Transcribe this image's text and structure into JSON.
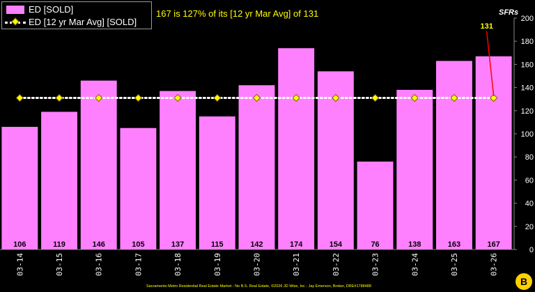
{
  "chart_data": {
    "type": "bar",
    "categories": [
      "03-14",
      "03-15",
      "03-16",
      "03-17",
      "03-18",
      "03-19",
      "03-20",
      "03-21",
      "03-22",
      "03-23",
      "03-24",
      "03-25",
      "03-26"
    ],
    "series": [
      {
        "name": "ED [SOLD]",
        "type": "bar",
        "color": "#ff80ff",
        "values": [
          106,
          119,
          146,
          105,
          137,
          115,
          142,
          174,
          154,
          76,
          138,
          163,
          167
        ]
      },
      {
        "name": "ED [12 yr Mar Avg] [SOLD]",
        "type": "line",
        "color": "#ffffff",
        "marker_color": "#ffff00",
        "values": [
          131,
          131,
          131,
          131,
          131,
          131,
          131,
          131,
          131,
          131,
          131,
          131,
          131
        ]
      }
    ],
    "ylim": [
      0,
      200
    ],
    "yticks": [
      0,
      20,
      40,
      60,
      80,
      100,
      120,
      140,
      160,
      180,
      200
    ],
    "ylabel": "SFRs",
    "annotation": "167 is 127% of its [12 yr Mar Avg] of 131",
    "callout": "131",
    "grid": false,
    "legend_position": "top-left"
  },
  "footer": "Sacramento Metro Residential Real Estate Market - No B.S. Real Estate, ©2026 JD Wise, Inc - Jay Emerson, Broker, DRE#1788488",
  "logo_text": "B"
}
